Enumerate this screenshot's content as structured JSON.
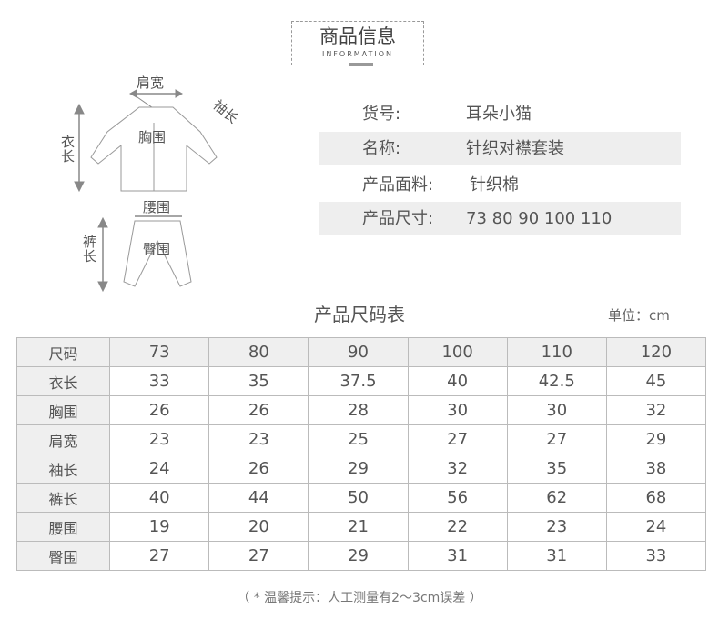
{
  "header": {
    "title": "商品信息",
    "subtitle": "INFORMATION"
  },
  "diagram": {
    "shoulder": "肩宽",
    "sleeve": "袖长",
    "chest": "胸围",
    "length": "衣长",
    "waist": "腰围",
    "hip": "臀围",
    "pants_length": "裤长"
  },
  "info": [
    {
      "key": "货号:",
      "value": "耳朵小猫"
    },
    {
      "key": "名称:",
      "value": "针织对襟套装"
    },
    {
      "key": "产品面料:",
      "value": "针织棉"
    },
    {
      "key": "产品尺寸:",
      "value": "73 80 90 100 110"
    }
  ],
  "table_title": "产品尺码表",
  "unit": "单位：cm",
  "size_table": {
    "header": [
      "尺码",
      "73",
      "80",
      "90",
      "100",
      "110",
      "120"
    ],
    "rows": [
      [
        "衣长",
        "33",
        "35",
        "37.5",
        "40",
        "42.5",
        "45"
      ],
      [
        "胸围",
        "26",
        "26",
        "28",
        "30",
        "30",
        "32"
      ],
      [
        "肩宽",
        "23",
        "23",
        "25",
        "27",
        "27",
        "29"
      ],
      [
        "袖长",
        "24",
        "26",
        "29",
        "32",
        "35",
        "38"
      ],
      [
        "裤长",
        "40",
        "44",
        "50",
        "56",
        "62",
        "68"
      ],
      [
        "腰围",
        "19",
        "20",
        "21",
        "22",
        "23",
        "24"
      ],
      [
        "臀围",
        "27",
        "27",
        "29",
        "31",
        "31",
        "33"
      ]
    ]
  },
  "note": "（ * 温馨提示：人工测量有2～3cm误差 ）"
}
